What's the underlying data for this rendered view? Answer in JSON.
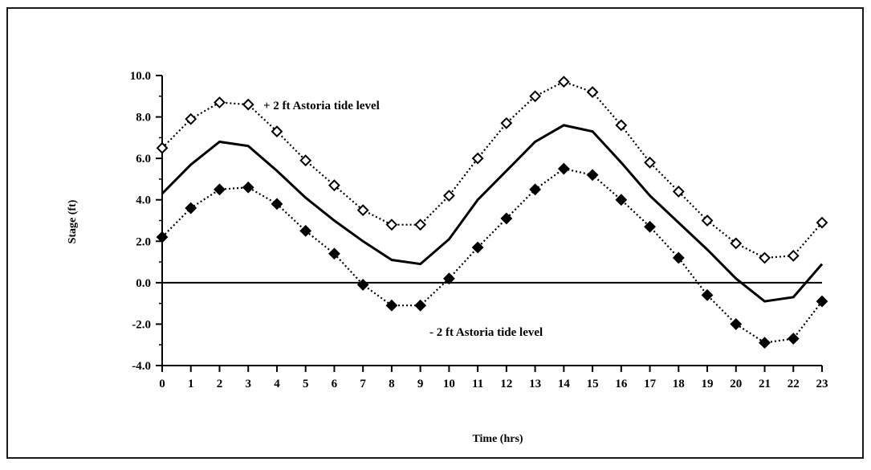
{
  "chart_data": {
    "type": "line",
    "xlabel": "Time (hrs)",
    "ylabel": "Stage (ft)",
    "xlim": [
      0,
      23
    ],
    "ylim": [
      -4.0,
      10.0
    ],
    "x_ticks": [
      "0",
      "1",
      "2",
      "3",
      "4",
      "5",
      "6",
      "7",
      "8",
      "9",
      "10",
      "11",
      "12",
      "13",
      "14",
      "15",
      "16",
      "17",
      "18",
      "19",
      "20",
      "21",
      "22",
      "23"
    ],
    "y_ticks": [
      "-4.0",
      "-2.0",
      "0.0",
      "2.0",
      "4.0",
      "6.0",
      "8.0",
      "10.0"
    ],
    "grid": false,
    "x": [
      0,
      1,
      2,
      3,
      4,
      5,
      6,
      7,
      8,
      9,
      10,
      11,
      12,
      13,
      14,
      15,
      16,
      17,
      18,
      19,
      20,
      21,
      22,
      23
    ],
    "series": [
      {
        "name": "+ 2 ft Astoria tide level",
        "line_style": "dotted",
        "marker": "open-diamond",
        "values": [
          6.5,
          7.9,
          8.7,
          8.6,
          7.3,
          5.9,
          4.7,
          3.5,
          2.8,
          2.8,
          4.2,
          6.0,
          7.7,
          9.0,
          9.7,
          9.2,
          7.6,
          5.8,
          4.4,
          3.0,
          1.9,
          1.2,
          1.3,
          2.9
        ]
      },
      {
        "line_style": "solid",
        "marker": "none",
        "values": [
          4.3,
          5.7,
          6.8,
          6.6,
          5.4,
          4.1,
          3.0,
          2.0,
          1.1,
          0.9,
          2.1,
          4.0,
          5.4,
          6.8,
          7.6,
          7.3,
          5.8,
          4.2,
          2.9,
          1.6,
          0.2,
          -0.9,
          -0.7,
          0.9
        ]
      },
      {
        "name": "- 2 ft Astoria tide level",
        "line_style": "dotted",
        "marker": "filled-diamond",
        "values": [
          2.2,
          3.6,
          4.5,
          4.6,
          3.8,
          2.5,
          1.4,
          -0.1,
          -1.1,
          -1.1,
          0.2,
          1.7,
          3.1,
          4.5,
          5.5,
          5.2,
          4.0,
          2.7,
          1.2,
          -0.6,
          -2.0,
          -2.9,
          -2.7,
          -0.9
        ]
      }
    ],
    "annotations": [
      {
        "text": "+ 2 ft Astoria tide level"
      },
      {
        "text": "- 2 ft Astoria tide level"
      }
    ],
    "reference_line": {
      "y": 0.0
    },
    "colors": {
      "line": "#000000",
      "background": "#ffffff"
    }
  }
}
